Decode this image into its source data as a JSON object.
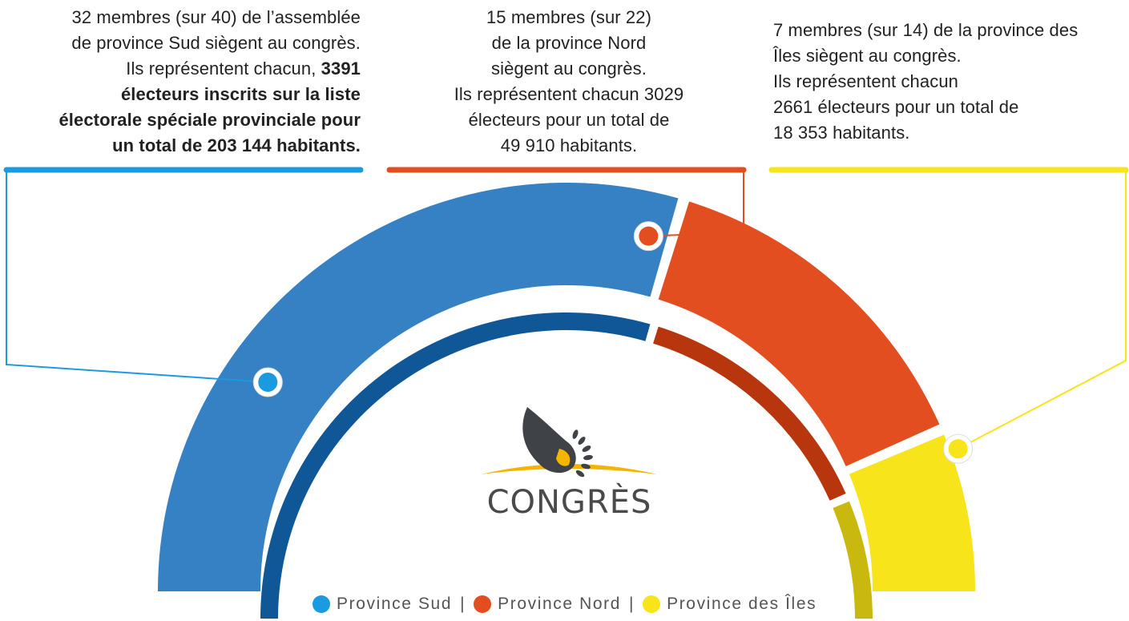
{
  "chart_data": {
    "type": "pie",
    "shape": "half-donut",
    "series": [
      {
        "name": "Province Sud",
        "value": 32,
        "color": "#3680c4",
        "side_color": "#0f5796",
        "dot_color": "#1c9ae0"
      },
      {
        "name": "Province Nord",
        "value": 15,
        "color": "#e24e1f",
        "side_color": "#b8360d",
        "dot_color": "#e24e1f"
      },
      {
        "name": "Province des Îles",
        "value": 7,
        "color": "#f7e41a",
        "side_color": "#c9b80e",
        "dot_color": "#f7e41a"
      }
    ],
    "total": 54
  },
  "notes": {
    "sud": {
      "l1": "32 membres (sur 40) de l’assemblée",
      "l2": "de province Sud siègent au congrès.",
      "l3a": "Ils représentent chacun, ",
      "l3b": "3391",
      "l4": "électeurs  inscrits sur la liste",
      "l5": "électorale spéciale provinciale pour",
      "l6": "un total de  203 144  habitants."
    },
    "nord": {
      "l1": "15 membres (sur 22)",
      "l2": "de la province Nord",
      "l3": "siègent au congrès.",
      "l4": "Ils représentent chacun  3029",
      "l5": "électeurs pour un total de",
      "l6": "49 910 habitants."
    },
    "iles": {
      "l1": "7 membres (sur 14) de la province des",
      "l2": "Îles siègent au congrès.",
      "l3": "Ils représentent chacun",
      "l4": "2661 électeurs pour un total de",
      "l5": "18 353 habitants."
    }
  },
  "logo": {
    "text": "CONGRÈS",
    "icon": "shell-icon"
  },
  "legend": {
    "sud": "Province Sud",
    "nord": "Province Nord",
    "iles": "Province des Îles",
    "separator": "|"
  }
}
